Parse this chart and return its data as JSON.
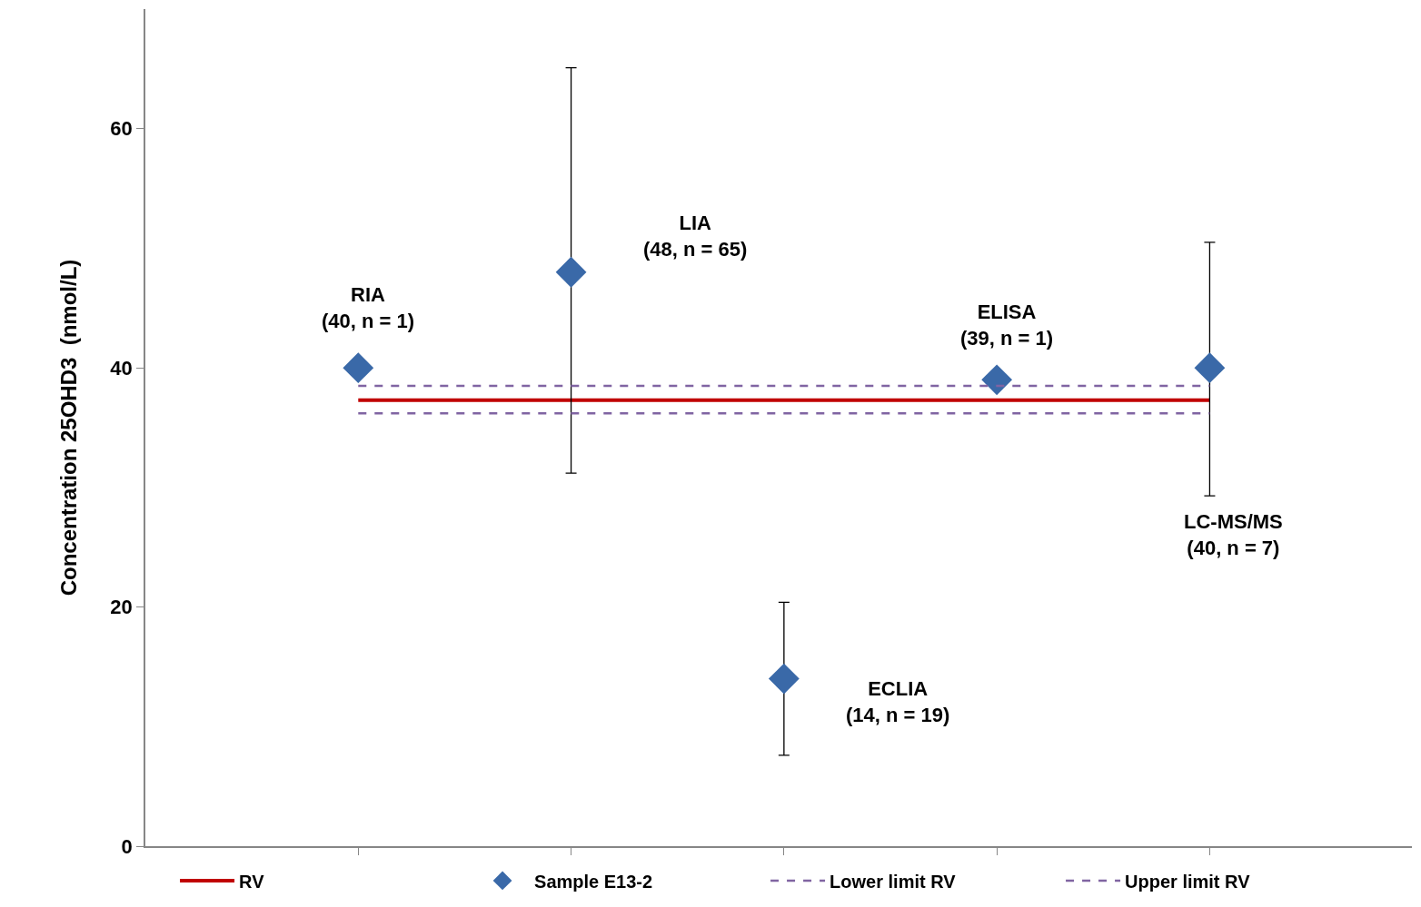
{
  "chart_data": {
    "type": "scatter",
    "ylabel": "Concentration 25OHD3  (nmol/L)",
    "categories": [
      null,
      null,
      null,
      null,
      null
    ],
    "ylim": [
      0,
      70
    ],
    "yticks": [
      0,
      20,
      40,
      60
    ],
    "tick_labels": "y",
    "legend": "bottom",
    "series": [
      {
        "name": "RV",
        "type": "line",
        "color": "#c00000",
        "values": [
          37.3,
          37.3,
          37.3,
          37.3,
          37.3
        ],
        "line_style": "solid",
        "marker": "none"
      },
      {
        "name": "Sample E13-2",
        "color": "#3a69a8",
        "values": [
          40,
          48,
          14,
          39,
          40
        ],
        "marker": "diamond",
        "errors": [
          null,
          [
            31.2,
            65.1
          ],
          [
            7.6,
            20.4
          ],
          null,
          [
            29.3,
            50.5
          ]
        ]
      },
      {
        "name": "Lower limit RV",
        "type": "line",
        "color": "#8064a2",
        "values": [
          36.2,
          36.2,
          36.2,
          36.2,
          36.2
        ],
        "line_style": "dashed",
        "marker": "none"
      },
      {
        "name": "Upper limit RV",
        "type": "line",
        "color": "#8064a2",
        "values": [
          38.5,
          38.5,
          38.5,
          38.5,
          38.5
        ],
        "line_style": "dashed",
        "marker": "none"
      }
    ],
    "annotations": [
      "RIA\n(40, n = 1)",
      "LIA\n(48, n = 65)",
      "ECLIA\n(14, n = 19)",
      "ELISA\n(39, n = 1)",
      "LC-MS/MS\n(40, n = 7)"
    ]
  }
}
